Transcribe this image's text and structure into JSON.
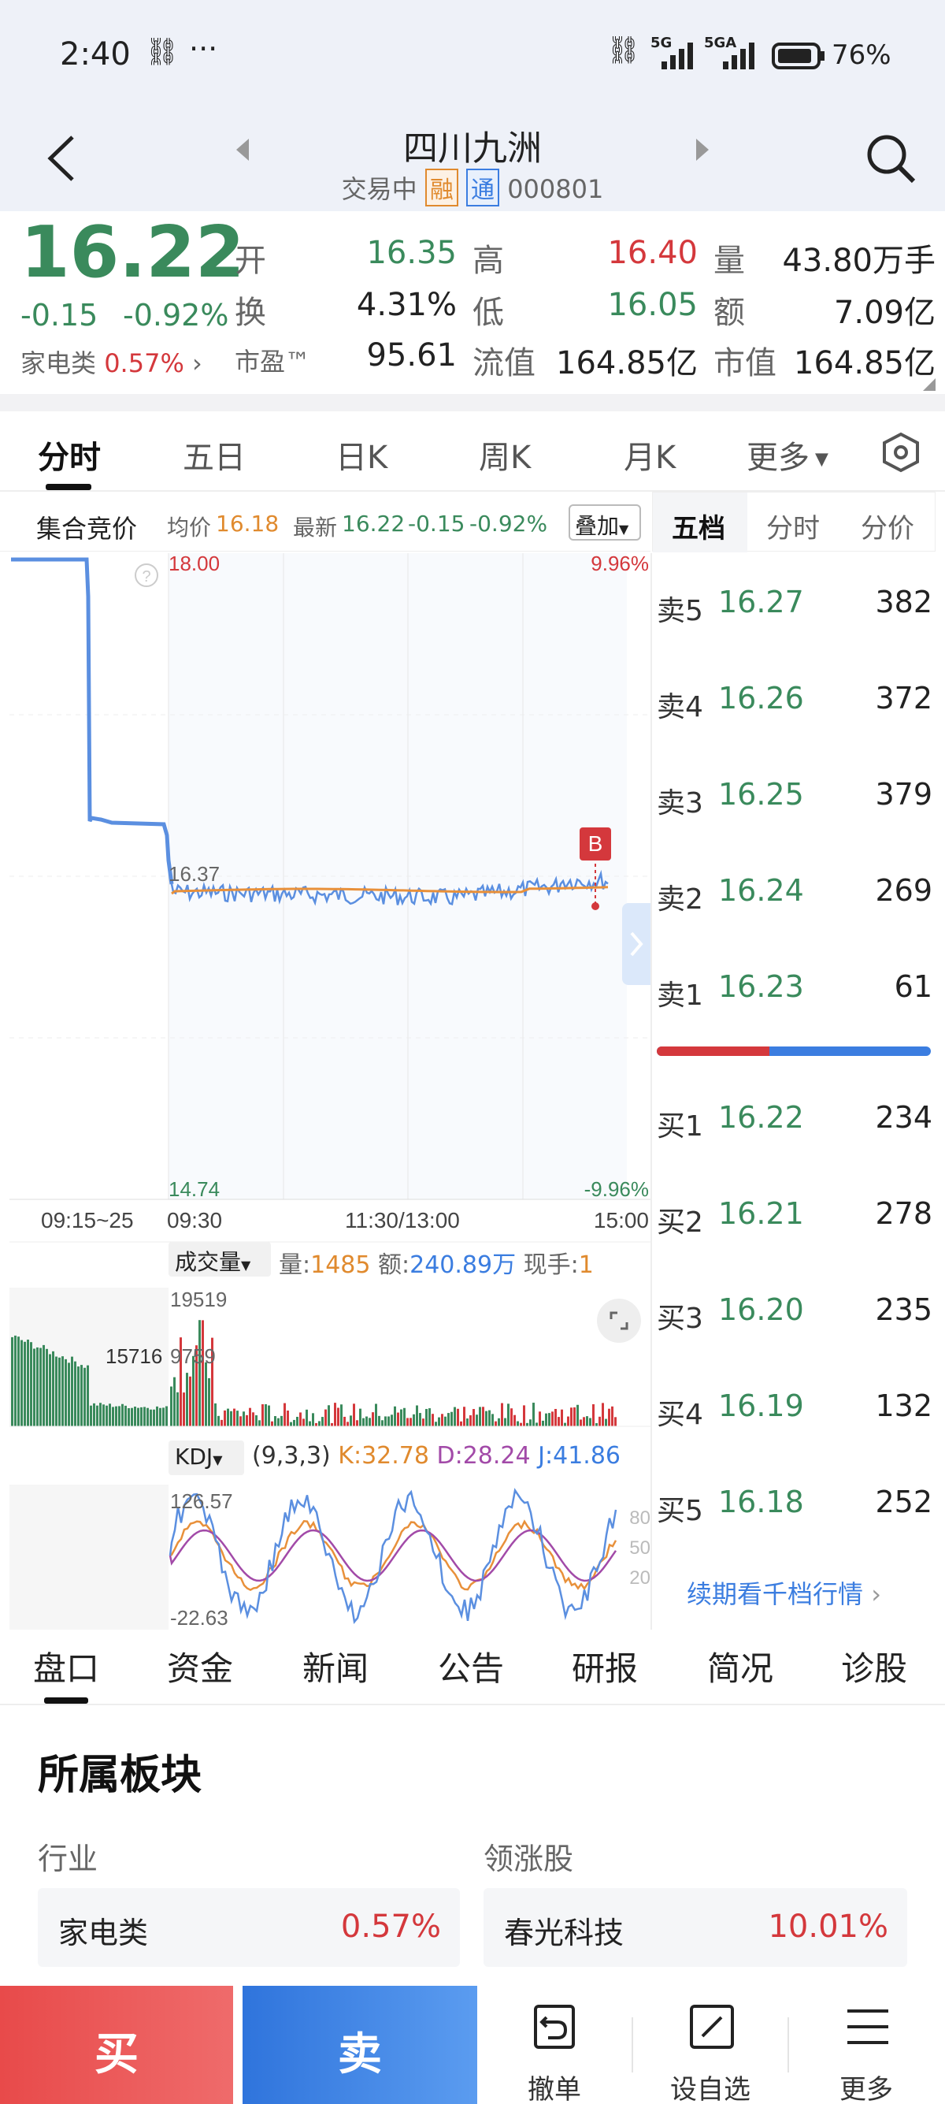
{
  "statusbar": {
    "time": "2:40",
    "dots": "···",
    "net1": "5G",
    "net2": "5GA",
    "battery": "76%"
  },
  "header": {
    "title": "四川九洲",
    "status": "交易中",
    "badge_rong": "融",
    "badge_tong": "通",
    "code": "000801"
  },
  "quote": {
    "price": "16.22",
    "change": "-0.15",
    "change_pct": "-0.92%",
    "sector_name": "家电类",
    "sector_pct": "0.57%",
    "open_label": "开",
    "open": "16.35",
    "high_label": "高",
    "high": "16.40",
    "vol_label": "量",
    "vol": "43.80万手",
    "turn_label": "换",
    "turn": "4.31%",
    "low_label": "低",
    "low": "16.05",
    "amt_label": "额",
    "amt": "7.09亿",
    "pe_label": "市盈™",
    "pe": "95.61",
    "float_label": "流值",
    "float": "164.85亿",
    "mcap_label": "市值",
    "mcap": "164.85亿"
  },
  "chart_tabs": [
    "分时",
    "五日",
    "日K",
    "周K",
    "月K",
    "更多"
  ],
  "intraday": {
    "auction_label": "集合竞价",
    "avg_label": "均价",
    "avg": "16.18",
    "latest_label": "最新",
    "latest": "16.22",
    "latest_chg": "-0.15",
    "latest_pct": "-0.92%",
    "overlay_btn": "叠加",
    "y_top": "18.00",
    "y_top_pct": "9.96%",
    "y_mid": "16.37",
    "y_bot": "14.74",
    "y_bot_pct": "-9.96%",
    "x_labels": [
      "09:15~25",
      "09:30",
      "11:30/13:00",
      "15:00"
    ],
    "marker": "B",
    "colors": {
      "price_line": "#5b8fe0",
      "avg_line": "#e8903a",
      "up": "#d4383c",
      "down": "#3a8a5c"
    }
  },
  "volume": {
    "selector": "成交量",
    "vol_label": "量:",
    "vol": "1485",
    "amt_label": "额:",
    "amt": "240.89万",
    "hand_label": "现手:",
    "hand": "1",
    "top_val": "19519",
    "auction_val": "15716",
    "mid_val": "9759"
  },
  "kdj": {
    "selector": "KDJ",
    "params": "(9,3,3)",
    "k": "K:32.78",
    "d": "D:28.24",
    "j": "J:41.86",
    "top_val": "126.57",
    "bot_val": "-22.63",
    "levels": [
      "80",
      "50",
      "20"
    ]
  },
  "orderbook": {
    "tabs": [
      "五档",
      "分时",
      "分价"
    ],
    "sells": [
      {
        "label": "卖5",
        "price": "16.27",
        "vol": "382"
      },
      {
        "label": "卖4",
        "price": "16.26",
        "vol": "372"
      },
      {
        "label": "卖3",
        "price": "16.25",
        "vol": "379"
      },
      {
        "label": "卖2",
        "price": "16.24",
        "vol": "269"
      },
      {
        "label": "卖1",
        "price": "16.23",
        "vol": "61"
      }
    ],
    "buys": [
      {
        "label": "买1",
        "price": "16.22",
        "vol": "234"
      },
      {
        "label": "买2",
        "price": "16.21",
        "vol": "278"
      },
      {
        "label": "买3",
        "price": "16.20",
        "vol": "235"
      },
      {
        "label": "买4",
        "price": "16.19",
        "vol": "132"
      },
      {
        "label": "买5",
        "price": "16.18",
        "vol": "252"
      }
    ],
    "more_link": "续期看千档行情",
    "buy_ratio": 0.41
  },
  "bottom_tabs": [
    "盘口",
    "资金",
    "新闻",
    "公告",
    "研报",
    "简况",
    "诊股"
  ],
  "sector": {
    "title": "所属板块",
    "industry_label": "行业",
    "leader_label": "领涨股",
    "industry_name": "家电类",
    "industry_pct": "0.57%",
    "leader_name": "春光科技",
    "leader_pct": "10.01%"
  },
  "actions": {
    "buy": "买",
    "sell": "卖",
    "cancel": "撤单",
    "watch": "设自选",
    "more": "更多"
  }
}
